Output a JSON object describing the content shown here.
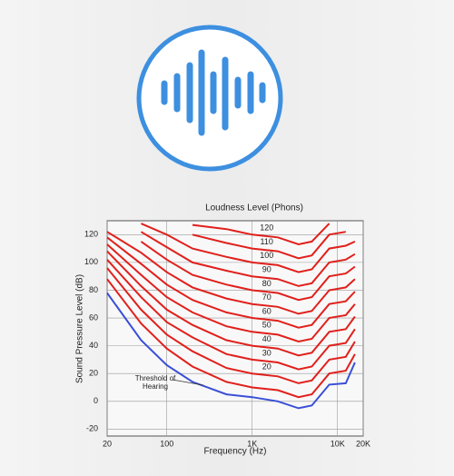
{
  "chart_data": {
    "type": "line",
    "title": "Loudness Level  (Phons)",
    "xlabel": "Frequency (Hz)",
    "ylabel": "Sound Pressure Level (dB)",
    "log_x": true,
    "grid": true,
    "x": [
      20,
      50,
      100,
      200,
      500,
      1000,
      2000,
      3500,
      5000,
      8000,
      12500,
      16000
    ],
    "xlim": [
      20,
      20000
    ],
    "xticks": [
      20,
      100,
      {
        "value": 1000,
        "label": "1K"
      },
      {
        "value": 10000,
        "label": "10K"
      },
      {
        "value": 20000,
        "label": "20K"
      }
    ],
    "ylim": [
      -25,
      130
    ],
    "yticks": [
      -20,
      0,
      20,
      40,
      60,
      80,
      100,
      120
    ],
    "series": [
      {
        "name": "Threshold of Hearing",
        "color": "#3a4fd6",
        "values": [
          78,
          44,
          26,
          14,
          5,
          3,
          0,
          -5,
          -3,
          12,
          13,
          28
        ]
      },
      {
        "color": "#e0201c",
        "values": [
          88,
          56,
          38,
          25,
          14,
          10,
          8,
          3,
          5,
          20,
          22,
          34
        ]
      },
      {
        "name": "20",
        "color": "#e0201c",
        "values": [
          96,
          66,
          48,
          36,
          24,
          20,
          18,
          13,
          15,
          30,
          32,
          43
        ]
      },
      {
        "name": "30",
        "color": "#e0201c",
        "values": [
          102,
          75,
          57,
          46,
          34,
          30,
          28,
          23,
          25,
          40,
          42,
          52
        ]
      },
      {
        "name": "40",
        "color": "#e0201c",
        "values": [
          108,
          83,
          66,
          55,
          44,
          40,
          38,
          33,
          35,
          50,
          52,
          61
        ]
      },
      {
        "name": "50",
        "color": "#e0201c",
        "values": [
          113,
          91,
          75,
          64,
          54,
          50,
          48,
          43,
          45,
          60,
          62,
          70
        ]
      },
      {
        "name": "60",
        "color": "#e0201c",
        "values": [
          118,
          99,
          84,
          73,
          64,
          60,
          58,
          53,
          55,
          70,
          72,
          79
        ]
      },
      {
        "name": "70",
        "color": "#e0201c",
        "values": [
          122,
          107,
          93,
          82,
          74,
          70,
          68,
          63,
          65,
          80,
          82,
          88
        ]
      },
      {
        "name": "80",
        "color": "#e0201c",
        "values": [
          null,
          115,
          102,
          91,
          84,
          80,
          78,
          73,
          75,
          90,
          92,
          97
        ]
      },
      {
        "name": "90",
        "color": "#e0201c",
        "values": [
          null,
          122,
          111,
          100,
          94,
          90,
          88,
          83,
          85,
          100,
          102,
          106
        ]
      },
      {
        "name": "100",
        "color": "#e0201c",
        "values": [
          null,
          128,
          120,
          110,
          104,
          100,
          98,
          93,
          95,
          110,
          112,
          115
        ]
      },
      {
        "name": "110",
        "color": "#e0201c",
        "values": [
          null,
          null,
          null,
          120,
          114,
          110,
          108,
          103,
          105,
          120,
          122,
          null
        ]
      },
      {
        "name": "120",
        "color": "#e0201c",
        "values": [
          null,
          null,
          null,
          127,
          124,
          120,
          118,
          113,
          115,
          128,
          null,
          null
        ]
      }
    ]
  }
}
